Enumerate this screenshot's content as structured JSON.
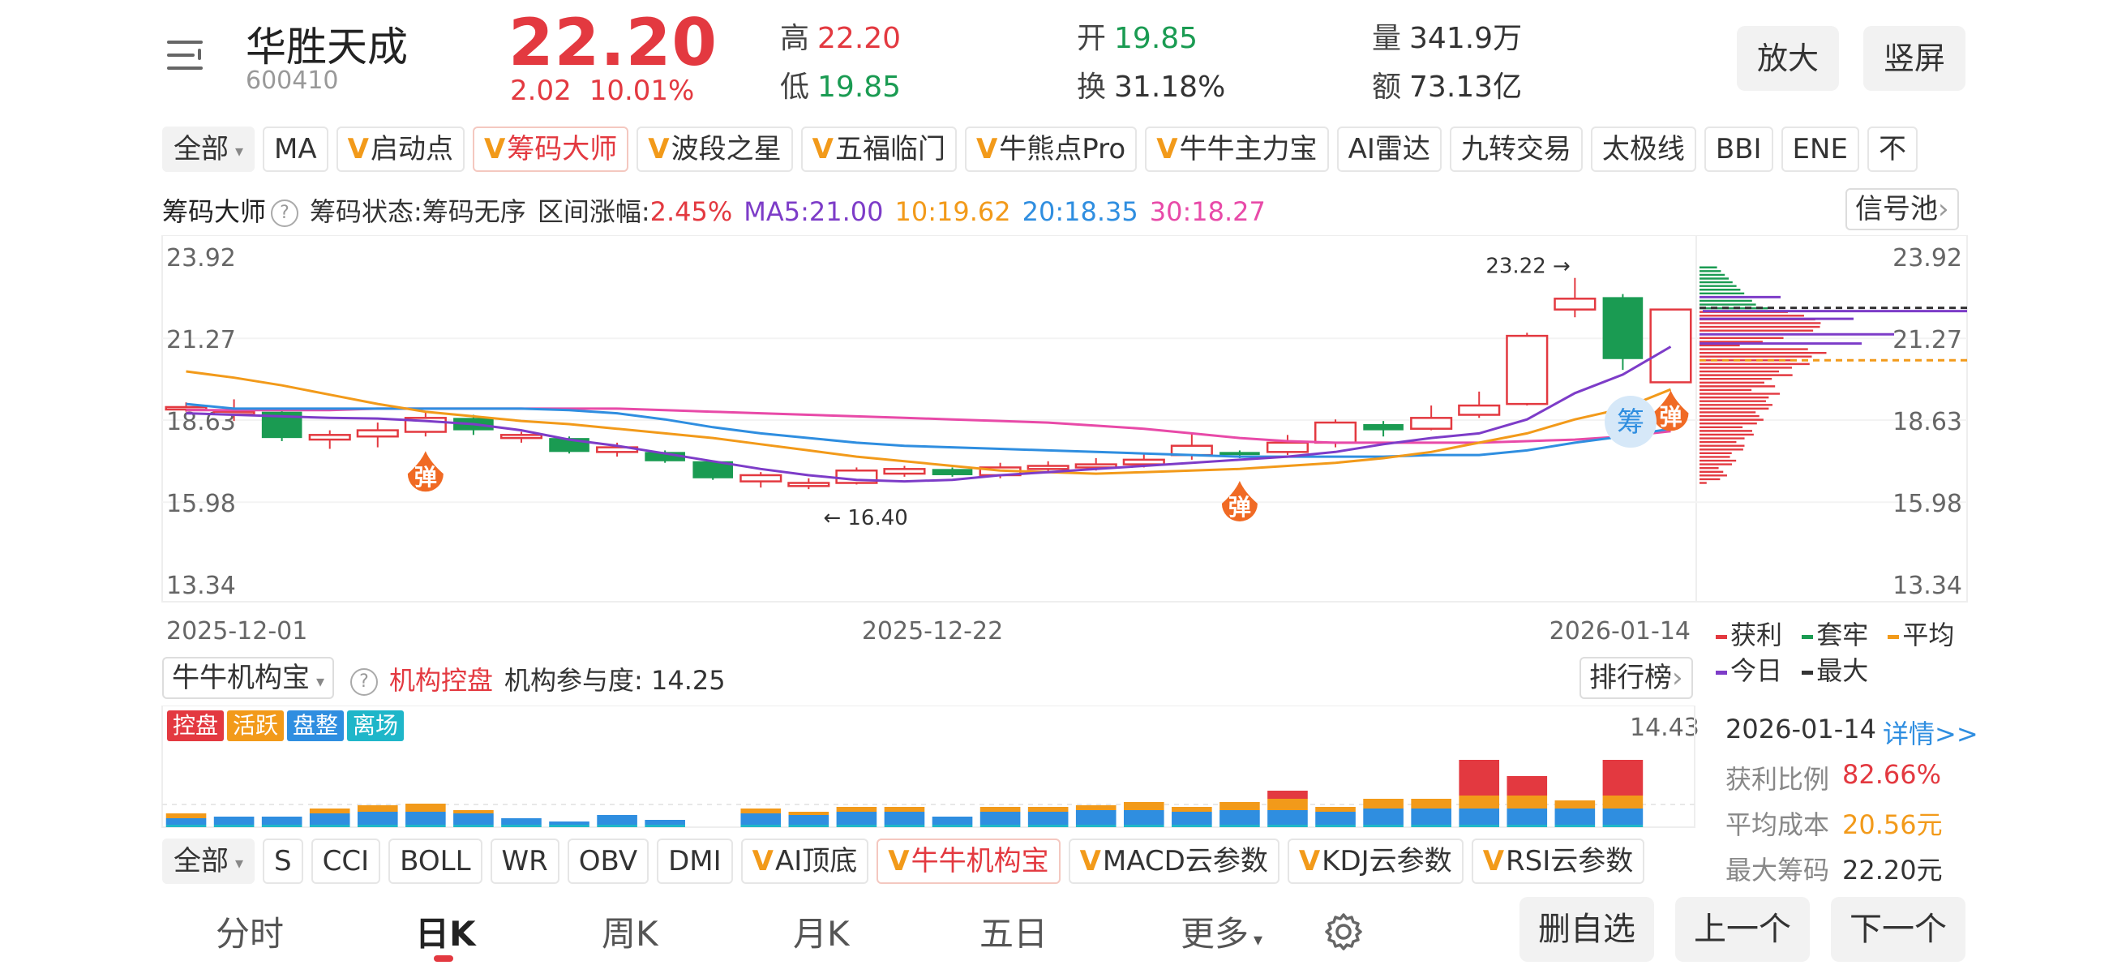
{
  "header": {
    "stock_name": "华胜天成",
    "stock_code": "600410",
    "price": "22.20",
    "change_abs": "2.02",
    "change_pct": "10.01%",
    "high_label": "高",
    "high_value": "22.20",
    "low_label": "低",
    "low_value": "19.85",
    "open_label": "开",
    "open_value": "19.85",
    "turnover_label": "换",
    "turnover_value": "31.18%",
    "volume_label": "量",
    "volume_value": "341.9万",
    "amount_label": "额",
    "amount_value": "73.13亿",
    "zoom_btn": "放大",
    "portrait_btn": "竖屏"
  },
  "indicator_tabs": [
    {
      "label": "全部",
      "vip": false,
      "dropdown": true
    },
    {
      "label": "MA",
      "vip": false
    },
    {
      "label": "启动点",
      "vip": true
    },
    {
      "label": "筹码大师",
      "vip": true,
      "active": true
    },
    {
      "label": "波段之星",
      "vip": true
    },
    {
      "label": "五福临门",
      "vip": true
    },
    {
      "label": "牛熊点Pro",
      "vip": true
    },
    {
      "label": "牛牛主力宝",
      "vip": true
    },
    {
      "label": "AI雷达",
      "vip": false
    },
    {
      "label": "九转交易",
      "vip": false
    },
    {
      "label": "太极线",
      "vip": false
    },
    {
      "label": "BBI",
      "vip": false
    },
    {
      "label": "ENE",
      "vip": false
    },
    {
      "label": "不",
      "vip": false
    }
  ],
  "chip_info": {
    "title": "筹码大师",
    "state": "筹码状态:筹码无序",
    "range_label": "区间涨幅:",
    "range_value": "2.45%",
    "ma5": "MA5:21.00",
    "ma10": "10:19.62",
    "ma20": "20:18.35",
    "ma30": "30:18.27",
    "signal_pool": "信号池"
  },
  "colors": {
    "up": "#e33940",
    "down": "#1a9b52",
    "ma5": "#7d3cc8",
    "ma10": "#f29a1a",
    "ma20": "#2f8ee0",
    "ma30": "#e84aa8"
  },
  "chart_data": {
    "type": "candlestick",
    "y_ticks": [
      "23.92",
      "21.27",
      "18.63",
      "15.98",
      "13.34"
    ],
    "ylim": [
      13.34,
      23.92
    ],
    "x_labels": [
      "2025-12-01",
      "2025-12-22",
      "2026-01-14"
    ],
    "max_annotation": "23.22",
    "min_annotation": "16.40",
    "bounce_marker": "弹",
    "chip_marker": "筹",
    "candles": [
      {
        "o": 19.05,
        "c": 19.05,
        "h": 19.2,
        "l": 18.9
      },
      {
        "o": 18.9,
        "c": 18.9,
        "h": 19.3,
        "l": 18.6
      },
      {
        "o": 18.9,
        "c": 18.05,
        "h": 19.0,
        "l": 17.95
      },
      {
        "o": 18.0,
        "c": 18.15,
        "h": 18.3,
        "l": 17.7
      },
      {
        "o": 18.1,
        "c": 18.3,
        "h": 18.55,
        "l": 17.75
      },
      {
        "o": 18.25,
        "c": 18.7,
        "h": 18.9,
        "l": 18.1
      },
      {
        "o": 18.7,
        "c": 18.3,
        "h": 18.8,
        "l": 18.15
      },
      {
        "o": 18.05,
        "c": 18.15,
        "h": 18.25,
        "l": 17.9
      },
      {
        "o": 18.05,
        "c": 17.6,
        "h": 18.1,
        "l": 17.55
      },
      {
        "o": 17.6,
        "c": 17.75,
        "h": 17.9,
        "l": 17.45
      },
      {
        "o": 17.6,
        "c": 17.3,
        "h": 17.65,
        "l": 17.25
      },
      {
        "o": 17.3,
        "c": 16.75,
        "h": 17.3,
        "l": 16.7
      },
      {
        "o": 16.65,
        "c": 16.85,
        "h": 16.95,
        "l": 16.45
      },
      {
        "o": 16.5,
        "c": 16.6,
        "h": 16.75,
        "l": 16.4
      },
      {
        "o": 16.6,
        "c": 17.0,
        "h": 17.1,
        "l": 16.55
      },
      {
        "o": 16.9,
        "c": 17.05,
        "h": 17.15,
        "l": 16.8
      },
      {
        "o": 17.05,
        "c": 16.85,
        "h": 17.1,
        "l": 16.8
      },
      {
        "o": 16.85,
        "c": 17.1,
        "h": 17.25,
        "l": 16.75
      },
      {
        "o": 17.05,
        "c": 17.15,
        "h": 17.3,
        "l": 16.95
      },
      {
        "o": 17.1,
        "c": 17.2,
        "h": 17.4,
        "l": 17.0
      },
      {
        "o": 17.2,
        "c": 17.35,
        "h": 17.55,
        "l": 17.1
      },
      {
        "o": 17.5,
        "c": 17.8,
        "h": 18.2,
        "l": 17.35
      },
      {
        "o": 17.6,
        "c": 17.5,
        "h": 17.65,
        "l": 17.4
      },
      {
        "o": 17.6,
        "c": 17.9,
        "h": 18.15,
        "l": 17.5
      },
      {
        "o": 17.9,
        "c": 18.55,
        "h": 18.65,
        "l": 17.75
      },
      {
        "o": 18.5,
        "c": 18.3,
        "h": 18.6,
        "l": 18.1
      },
      {
        "o": 18.35,
        "c": 18.7,
        "h": 19.1,
        "l": 18.3
      },
      {
        "o": 18.8,
        "c": 19.1,
        "h": 19.55,
        "l": 18.7
      },
      {
        "o": 19.15,
        "c": 21.35,
        "h": 21.45,
        "l": 19.1
      },
      {
        "o": 22.2,
        "c": 22.55,
        "h": 23.22,
        "l": 21.95
      },
      {
        "o": 22.6,
        "c": 20.6,
        "h": 22.7,
        "l": 20.25
      },
      {
        "o": 19.85,
        "c": 22.2,
        "h": 22.2,
        "l": 19.85
      }
    ],
    "ma5": [
      18.85,
      18.8,
      18.75,
      18.7,
      18.68,
      18.6,
      18.5,
      18.3,
      18.0,
      17.8,
      17.55,
      17.3,
      17.05,
      16.85,
      16.7,
      16.65,
      16.7,
      16.85,
      16.95,
      17.05,
      17.15,
      17.25,
      17.35,
      17.45,
      17.6,
      17.85,
      18.05,
      18.2,
      18.65,
      19.5,
      20.1,
      21.0
    ],
    "ma10": [
      20.2,
      20.0,
      19.75,
      19.45,
      19.15,
      18.9,
      18.75,
      18.6,
      18.5,
      18.35,
      18.2,
      18.05,
      17.85,
      17.65,
      17.45,
      17.3,
      17.15,
      17.0,
      16.95,
      16.9,
      16.95,
      17.0,
      17.05,
      17.15,
      17.25,
      17.4,
      17.6,
      17.9,
      18.2,
      18.65,
      19.0,
      19.62
    ],
    "ma20": [
      19.15,
      19.0,
      19.0,
      19.0,
      19.0,
      19.0,
      19.0,
      19.0,
      18.95,
      18.85,
      18.65,
      18.4,
      18.2,
      18.05,
      17.9,
      17.8,
      17.75,
      17.7,
      17.65,
      17.6,
      17.55,
      17.5,
      17.45,
      17.45,
      17.45,
      17.45,
      17.5,
      17.5,
      17.65,
      17.9,
      18.1,
      18.35
    ],
    "ma30": [
      18.95,
      18.95,
      18.95,
      18.95,
      19.0,
      19.0,
      19.0,
      19.0,
      19.0,
      19.0,
      18.95,
      18.9,
      18.85,
      18.8,
      18.75,
      18.7,
      18.65,
      18.6,
      18.55,
      18.45,
      18.35,
      18.2,
      18.05,
      17.95,
      17.9,
      17.9,
      17.9,
      17.9,
      17.95,
      18.0,
      18.1,
      18.27
    ],
    "chip_legend": [
      "获利",
      "套牢",
      "平均",
      "今日",
      "最大"
    ]
  },
  "inst": {
    "title": "牛牛机构宝",
    "state": "机构控盘",
    "participation": "机构参与度: 14.25",
    "rank_btn": "排行榜",
    "max_value": "14.43",
    "badges": [
      "控盘",
      "活跃",
      "盘整",
      "离场"
    ],
    "bars": [
      1,
      1,
      1,
      2,
      3,
      3,
      2,
      1,
      0,
      1,
      0,
      0,
      2,
      2,
      3,
      3,
      1,
      2,
      2,
      2,
      3,
      2,
      3,
      5,
      2,
      3,
      3,
      9,
      8,
      3,
      9,
      0
    ],
    "bar_values": [
      {
        "blue": 4,
        "orange": 3,
        "red": 0
      },
      {
        "blue": 5,
        "orange": 0,
        "red": 0
      },
      {
        "blue": 5,
        "orange": 0,
        "red": 0
      },
      {
        "blue": 7,
        "orange": 3,
        "red": 0
      },
      {
        "blue": 8,
        "orange": 4,
        "red": 0
      },
      {
        "blue": 8,
        "orange": 5,
        "red": 0
      },
      {
        "blue": 7,
        "orange": 2,
        "red": 0
      },
      {
        "blue": 4,
        "orange": 0,
        "red": 0
      },
      {
        "blue": 2,
        "orange": 0,
        "red": 0
      },
      {
        "blue": 6,
        "orange": 0,
        "red": 0
      },
      {
        "blue": 3,
        "orange": 0,
        "red": 0
      },
      {
        "blue": 0,
        "orange": 0,
        "red": 0
      },
      {
        "blue": 7,
        "orange": 3,
        "red": 0
      },
      {
        "blue": 6,
        "orange": 2,
        "red": 0
      },
      {
        "blue": 8,
        "orange": 3,
        "red": 0
      },
      {
        "blue": 8,
        "orange": 3,
        "red": 0
      },
      {
        "blue": 5,
        "orange": 0,
        "red": 0
      },
      {
        "blue": 8,
        "orange": 3,
        "red": 0
      },
      {
        "blue": 8,
        "orange": 3,
        "red": 0
      },
      {
        "blue": 9,
        "orange": 3,
        "red": 0
      },
      {
        "blue": 9,
        "orange": 5,
        "red": 0
      },
      {
        "blue": 8,
        "orange": 3,
        "red": 0
      },
      {
        "blue": 9,
        "orange": 5,
        "red": 0
      },
      {
        "blue": 9,
        "orange": 7,
        "red": 5
      },
      {
        "blue": 8,
        "orange": 3,
        "red": 0
      },
      {
        "blue": 10,
        "orange": 6,
        "red": 0
      },
      {
        "blue": 10,
        "orange": 6,
        "red": 0
      },
      {
        "blue": 10,
        "orange": 8,
        "red": 22
      },
      {
        "blue": 10,
        "orange": 8,
        "red": 12
      },
      {
        "blue": 10,
        "orange": 5,
        "red": 0
      },
      {
        "blue": 10,
        "orange": 8,
        "red": 22
      },
      {
        "blue": 0,
        "orange": 0,
        "red": 0
      }
    ]
  },
  "side_info": {
    "date": "2026-01-14",
    "detail": "详情>>",
    "profit_ratio_label": "获利比例",
    "profit_ratio": "82.66%",
    "avg_cost_label": "平均成本",
    "avg_cost": "20.56元",
    "max_chip_label": "最大筹码",
    "max_chip": "22.20元"
  },
  "sub_tabs": [
    {
      "label": "全部",
      "vip": false,
      "dropdown": true
    },
    {
      "label": "S",
      "vip": false
    },
    {
      "label": "CCI",
      "vip": false
    },
    {
      "label": "BOLL",
      "vip": false
    },
    {
      "label": "WR",
      "vip": false
    },
    {
      "label": "OBV",
      "vip": false
    },
    {
      "label": "DMI",
      "vip": false
    },
    {
      "label": "AI顶底",
      "vip": true
    },
    {
      "label": "牛牛机构宝",
      "vip": true,
      "active": true
    },
    {
      "label": "MACD云参数",
      "vip": true
    },
    {
      "label": "KDJ云参数",
      "vip": true
    },
    {
      "label": "RSI云参数",
      "vip": true
    }
  ],
  "bottom_nav": {
    "intraday": "分时",
    "daily": "日K",
    "weekly": "周K",
    "monthly": "月K",
    "five_day": "五日",
    "more": "更多",
    "remove_fav": "删自选",
    "prev": "上一个",
    "next": "下一个"
  }
}
